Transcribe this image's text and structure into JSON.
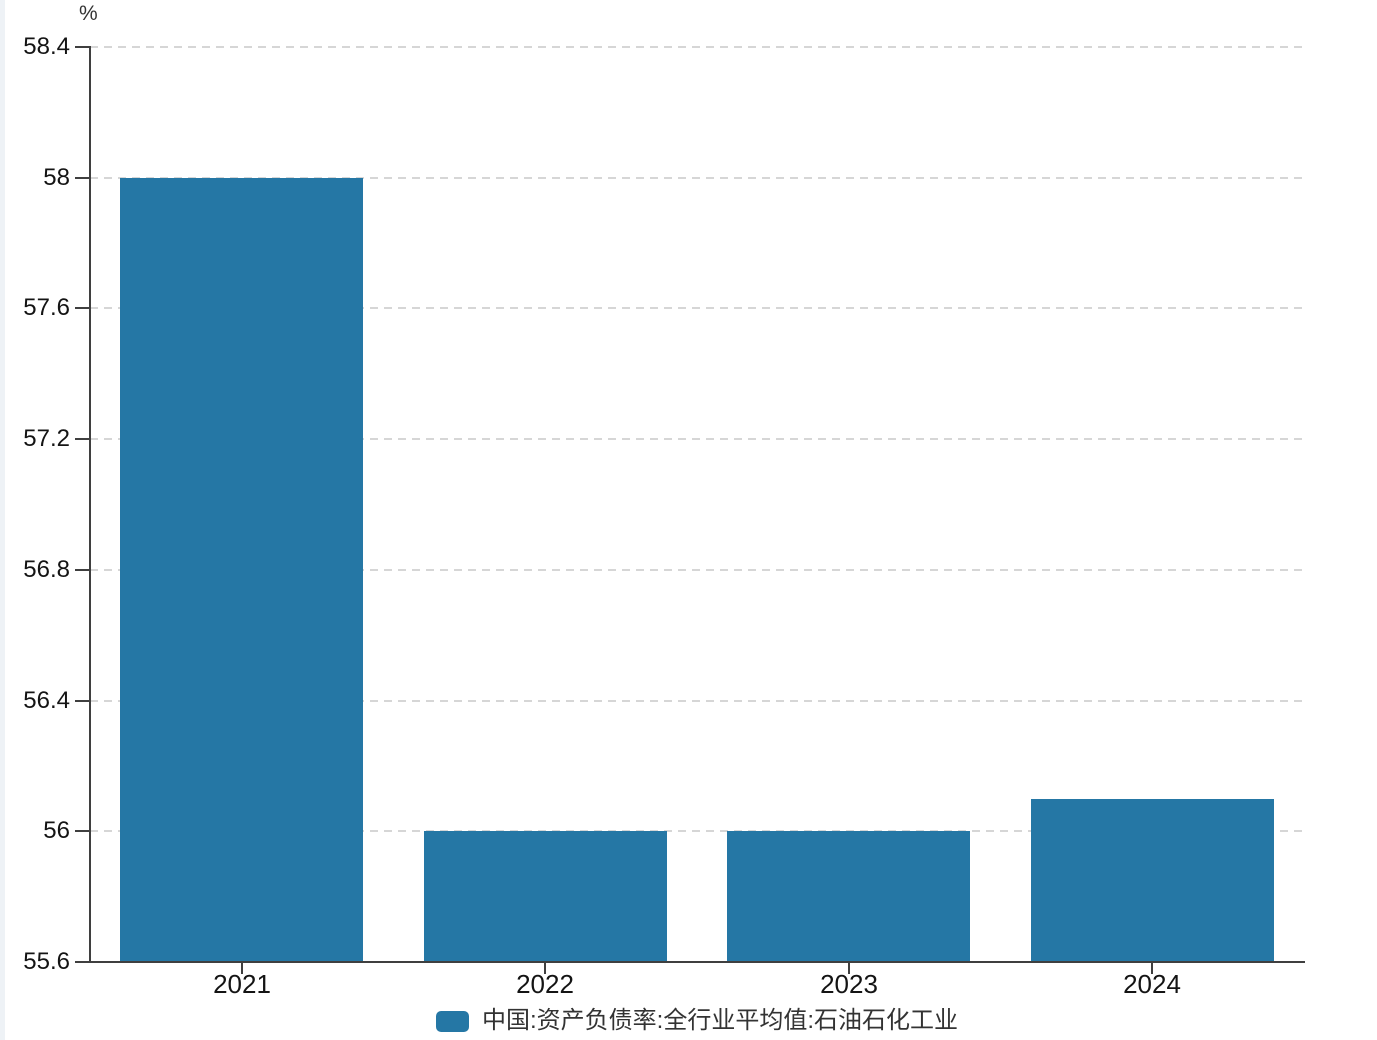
{
  "page": {
    "background_color": "#ffffff"
  },
  "chart_data": {
    "type": "bar",
    "title": "",
    "ylabel": "%",
    "xlabel": "",
    "categories": [
      "2021",
      "2022",
      "2023",
      "2024"
    ],
    "values": [
      58,
      56,
      56,
      56.1
    ],
    "series_name": "中国:资产负债率:全行业平均值:石油石化工业",
    "bar_color": "#2577a5",
    "ylim": [
      55.6,
      58.4
    ],
    "ytick_labels": [
      "58.4",
      "58",
      "57.6",
      "57.2",
      "56.8",
      "56.4",
      "56",
      "55.6"
    ],
    "grid": "horizontal-dashed",
    "legend_position": "bottom-center"
  }
}
